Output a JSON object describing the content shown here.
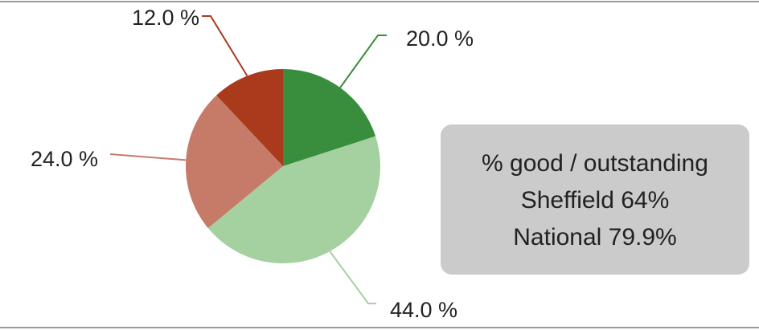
{
  "chart_data": {
    "type": "pie",
    "values": [
      20,
      44,
      24,
      12
    ],
    "value_labels": [
      "20.0 %",
      "44.0 %",
      "24.0 %",
      "12.0 %"
    ],
    "colors": [
      "#388e3c",
      "#a5d1a0",
      "#c67b69",
      "#a93a1c"
    ],
    "annotation": [
      "% good / outstanding",
      "Sheffield 64%",
      "National 79.9%"
    ]
  }
}
